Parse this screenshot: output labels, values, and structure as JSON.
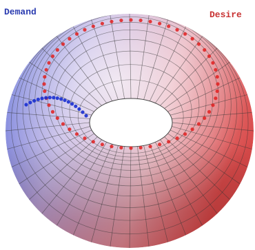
{
  "labels": {
    "left": "Demand",
    "right": "Desire"
  }
}
